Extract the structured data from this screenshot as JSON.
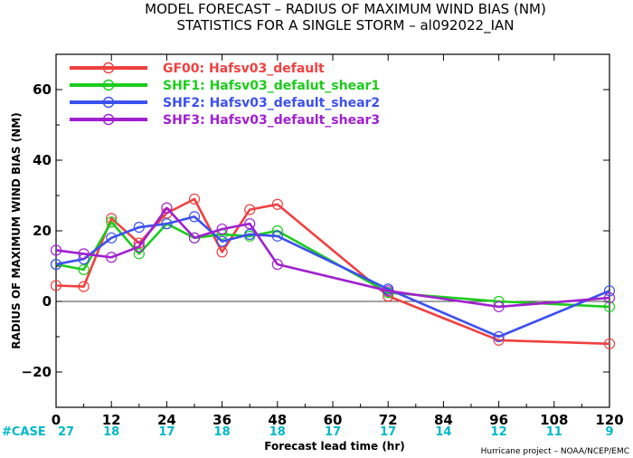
{
  "chart_data": {
    "type": "line",
    "title": "MODEL FORECAST – RADIUS OF MAXIMUM WIND BIAS (NM)",
    "subtitle": "STATISTICS FOR A SINGLE STORM – al092022_IAN",
    "xlabel": "Forecast lead time (hr)",
    "ylabel": "RADIUS OF MAXIMUM WIND BIAS (NM)",
    "xlim": [
      0,
      120
    ],
    "ylim": [
      -30,
      70
    ],
    "xticks": [
      0,
      12,
      24,
      36,
      48,
      60,
      72,
      84,
      96,
      108,
      120
    ],
    "xtick_labels": [
      "0",
      "12",
      "24",
      "36",
      "48",
      "60",
      "72",
      "84",
      "96",
      "108",
      "120"
    ],
    "yticks": [
      -20,
      0,
      20,
      40,
      60
    ],
    "ytick_labels": [
      "−20",
      "0",
      "20",
      "40",
      "60"
    ],
    "zero_line": true,
    "grid": false,
    "legend_position": "top-left",
    "case_label": "#CASE",
    "cases": [
      "27",
      "18",
      "17",
      "18",
      "18",
      "17",
      "17",
      "14",
      "12",
      "11",
      "9"
    ],
    "credit": "Hurricane project – NOAA/NCEP/EMC",
    "series": [
      {
        "name": "GF00:  Hafsv03_default",
        "color": "#f04040",
        "x": [
          0,
          6,
          12,
          18,
          24,
          30,
          36,
          42,
          48,
          72,
          96,
          120
        ],
        "y": [
          4.5,
          4.2,
          23.5,
          16.5,
          25,
          29,
          14,
          26,
          27.5,
          1.5,
          -11,
          -12
        ]
      },
      {
        "name": "SHF1:  Hafsv03_defalut_shear1",
        "color": "#1ccc1c",
        "x": [
          0,
          6,
          12,
          18,
          24,
          30,
          36,
          42,
          48,
          72,
          96,
          120
        ],
        "y": [
          10.5,
          9,
          22.5,
          13.5,
          22,
          18,
          19,
          18.5,
          20,
          2.5,
          0,
          -1.5
        ]
      },
      {
        "name": "SHF2:  Hafsv03_default_shear2",
        "color": "#3c50f0",
        "x": [
          0,
          6,
          12,
          18,
          24,
          30,
          36,
          42,
          48,
          72,
          96,
          120
        ],
        "y": [
          10.5,
          12,
          18,
          21,
          22,
          24,
          17,
          19,
          18.5,
          3.5,
          -10,
          3
        ]
      },
      {
        "name": "SHF3:  Hafsv03_default_shear3",
        "color": "#a020d0",
        "x": [
          0,
          6,
          12,
          18,
          24,
          30,
          36,
          42,
          48,
          72,
          96,
          120
        ],
        "y": [
          14.5,
          13.5,
          12.5,
          15.5,
          26.5,
          18,
          20.5,
          22,
          10.5,
          3,
          -1.5,
          1
        ]
      }
    ]
  }
}
